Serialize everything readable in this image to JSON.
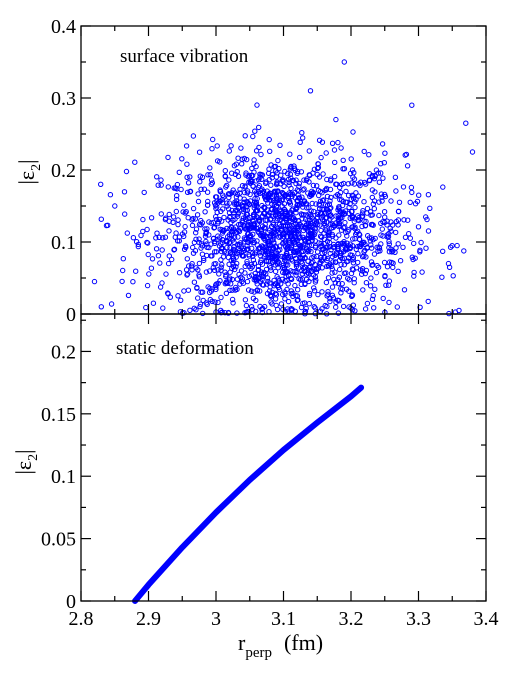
{
  "chart_data": [
    {
      "type": "scatter",
      "annotation": "surface vibration",
      "ylabel_main": "|ε",
      "ylabel_sub": "2",
      "ylabel_tail": "|",
      "xlim": [
        2.8,
        3.4
      ],
      "ylim": [
        0,
        0.4
      ],
      "x_ticks": [
        2.8,
        2.9,
        3.0,
        3.1,
        3.2,
        3.3,
        3.4
      ],
      "y_ticks": [
        0,
        0.1,
        0.2,
        0.3,
        0.4
      ],
      "y_tick_labels": [
        "0",
        "0.1",
        "0.2",
        "0.3",
        "0.4"
      ],
      "grid": false,
      "marker": "open circle",
      "color": "#0000ff",
      "distribution": {
        "n_points": 1900,
        "x_mean": 3.1,
        "x_sd": 0.09,
        "y_mean": 0.11,
        "y_sd": 0.055,
        "x_range": [
          2.82,
          3.38
        ],
        "y_range": [
          0.0,
          0.35
        ]
      },
      "notable_points": [
        {
          "x": 3.19,
          "y": 0.35
        },
        {
          "x": 3.14,
          "y": 0.31
        },
        {
          "x": 3.37,
          "y": 0.265
        },
        {
          "x": 3.38,
          "y": 0.225
        },
        {
          "x": 2.82,
          "y": 0.045
        },
        {
          "x": 2.83,
          "y": 0.01
        },
        {
          "x": 2.85,
          "y": 0.15
        },
        {
          "x": 3.29,
          "y": 0.29
        },
        {
          "x": 3.36,
          "y": 0.005
        }
      ]
    },
    {
      "type": "line",
      "annotation": "static deformation",
      "ylabel_main": "|ε",
      "ylabel_sub": "2",
      "ylabel_tail": "|",
      "xlabel_main": "r",
      "xlabel_sub": "perp",
      "xlabel_unit": "(fm)",
      "xlim": [
        2.8,
        3.4
      ],
      "ylim": [
        0,
        0.23
      ],
      "x_ticks": [
        2.8,
        2.9,
        3.0,
        3.1,
        3.2,
        3.3,
        3.4
      ],
      "x_tick_labels": [
        "2.8",
        "2.9",
        "3",
        "3.1",
        "3.2",
        "3.3",
        "3.4"
      ],
      "y_ticks": [
        0,
        0.05,
        0.1,
        0.15,
        0.2
      ],
      "y_tick_labels": [
        "0",
        "0.05",
        "0.1",
        "0.15",
        "0.2"
      ],
      "grid": false,
      "color": "#0000ff",
      "series": [
        {
          "x": [
            2.88,
            2.9,
            2.95,
            3.0,
            3.05,
            3.1,
            3.15,
            3.2,
            3.215
          ],
          "y": [
            0.0,
            0.013,
            0.043,
            0.071,
            0.097,
            0.121,
            0.143,
            0.164,
            0.171
          ]
        }
      ]
    }
  ]
}
